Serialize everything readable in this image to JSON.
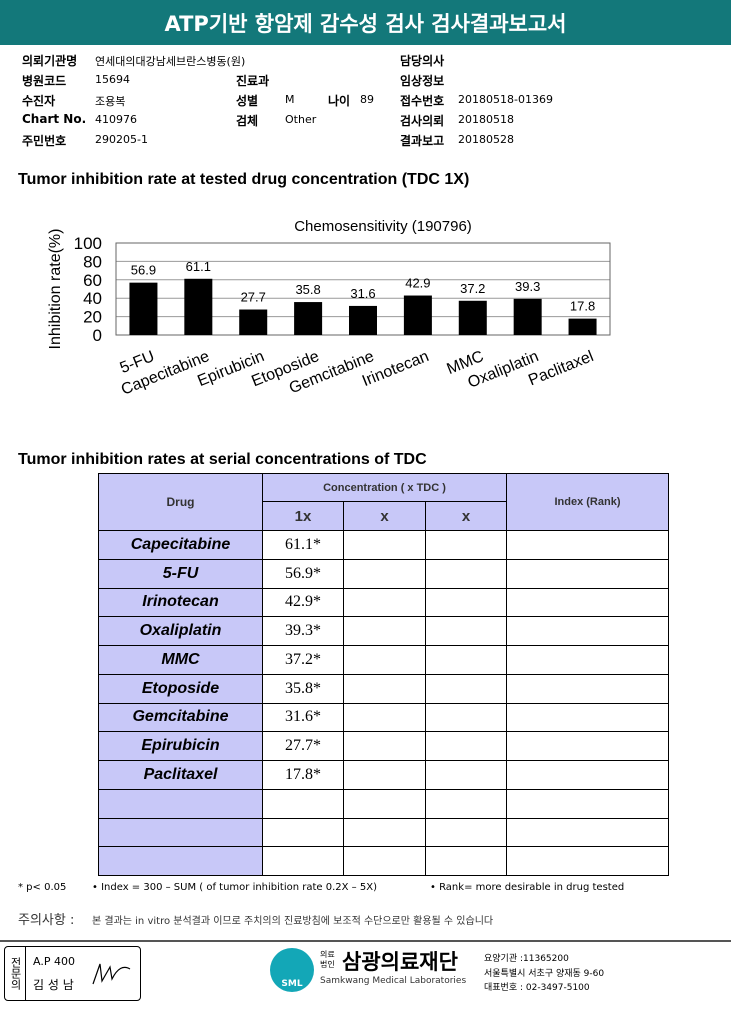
{
  "header": {
    "title": "ATP기반 항암제 감수성 검사 검사결과보고서"
  },
  "info": [
    {
      "label": "의뢰기관명",
      "value": "연세대의대강남세브란스병동(원)"
    },
    {
      "label": "담당의사"
    },
    {
      "label": "병원코드",
      "value": "15694"
    },
    {
      "label": "진료과"
    },
    {
      "label": "임상정보"
    },
    {
      "label": "수진자",
      "value": "조용복"
    },
    {
      "label": "성별",
      "value": "M"
    },
    {
      "label": "나이",
      "value": "89"
    },
    {
      "label": "접수번호",
      "value": "20180518-01369"
    },
    {
      "label": "Chart No.",
      "value": "410976"
    },
    {
      "label": "검체",
      "value": "Other"
    },
    {
      "label": "검사의뢰",
      "value": "20180518"
    },
    {
      "label": "주민번호",
      "value": "290205-1"
    },
    {
      "label": "결과보고",
      "value": "20180528"
    }
  ],
  "chart_section_title": "Tumor inhibition rate at tested drug concentration (TDC 1X)",
  "chart_data": {
    "type": "bar",
    "title": "Chemosensitivity (190796)",
    "y_label": "Inhibition rate(%)",
    "categories": [
      "5-FU",
      "Capecitabine",
      "Epirubicin",
      "Etoposide",
      "Gemcitabine",
      "Irinotecan",
      "MMC",
      "Oxaliplatin",
      "Paclitaxel"
    ],
    "values": [
      56.9,
      61.1,
      27.7,
      35.8,
      31.6,
      42.9,
      37.2,
      39.3,
      17.8
    ],
    "color": "#000000",
    "ylim": [
      0,
      100
    ],
    "yticks": [
      0,
      20,
      40,
      60,
      80,
      100
    ],
    "grid": true
  },
  "table_section_title": "Tumor inhibition rates at serial concentrations of TDC",
  "table": {
    "drug_header": "Drug",
    "concentration_header": "Concentration ( x TDC )",
    "index_header": "Index (Rank)",
    "sub_headers": [
      "1x",
      "x",
      "x"
    ],
    "rows": [
      [
        "Capecitabine",
        "61.1*"
      ],
      [
        "5-FU",
        "56.9*"
      ],
      [
        "Irinotecan",
        "42.9*"
      ],
      [
        "Oxaliplatin",
        "39.3*"
      ],
      [
        "MMC",
        "37.2*"
      ],
      [
        "Etoposide",
        "35.8*"
      ],
      [
        "Gemcitabine",
        "31.6*"
      ],
      [
        "Epirubicin",
        "27.7*"
      ],
      [
        "Paclitaxel",
        "17.8*"
      ]
    ]
  },
  "footnotes": [
    "* p< 0.05",
    "• Index = 300 – SUM ( of tumor inhibition rate 0.2X – 5X)",
    "• Rank= more desirable in drug tested"
  ],
  "notice": {
    "label": "주의사항 :",
    "text": "본 결과는 in vitro 분석결과 이므로 주치의의 진료방침에 보조적 수단으로만 활용될 수 있습니다"
  },
  "footer": {
    "specialist": "전문의",
    "code": "A.P 400",
    "name": "김 성 남",
    "org_prefix": "의료법인",
    "org_name": "삼광의료재단",
    "org_english": "Samkwang Medical Laboratories",
    "logo_text": "SML",
    "contact": [
      "요양기관 :11365200",
      "서울특별시 서초구 양재동 9-60",
      "대표번호 : 02-3497-5100"
    ]
  }
}
